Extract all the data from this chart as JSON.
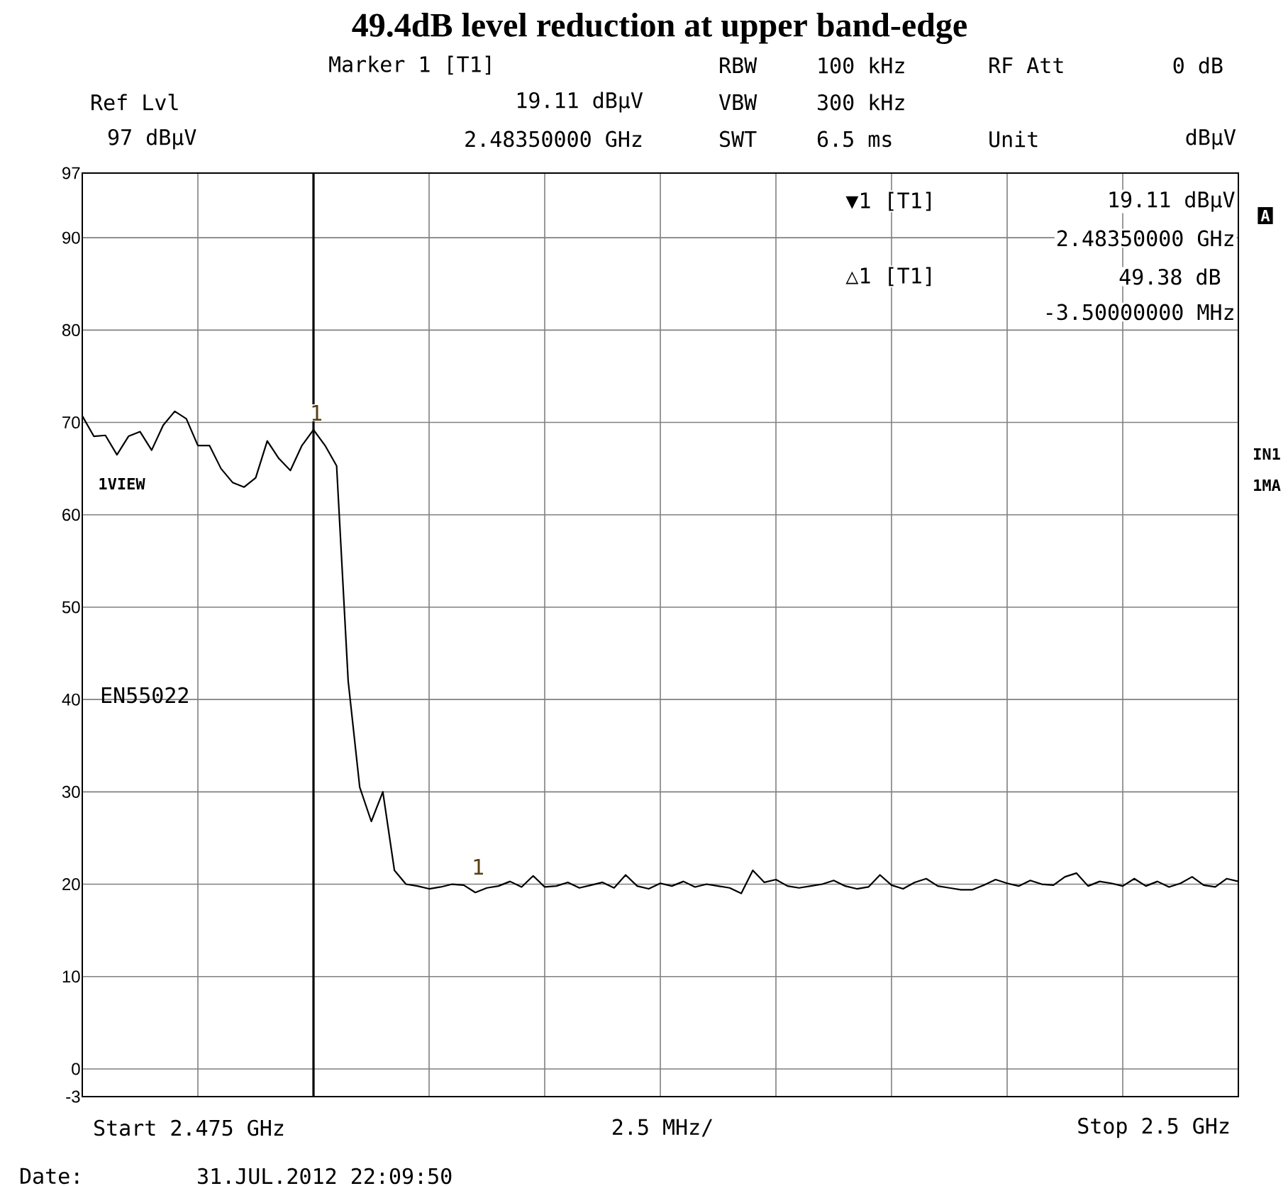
{
  "chart_data": {
    "type": "line",
    "title": "49.4dB level reduction at upper band-edge",
    "categories": [
      null,
      null,
      null,
      null,
      null,
      null,
      null,
      null,
      null,
      null,
      null,
      null,
      null,
      null,
      null,
      null,
      null,
      null,
      null,
      null,
      null,
      null,
      null,
      null,
      null,
      null,
      null,
      null,
      null,
      null,
      null,
      null,
      null,
      null,
      null,
      null,
      null,
      null,
      null,
      null,
      null,
      null,
      null,
      null,
      null,
      null,
      null,
      null,
      null,
      null,
      null,
      null,
      null,
      null,
      null,
      null,
      null,
      null,
      null,
      null,
      null,
      null,
      null,
      null,
      null,
      null,
      null,
      null,
      null,
      null,
      null,
      null,
      null,
      null,
      null,
      null,
      null,
      null,
      null,
      null,
      null,
      null,
      null,
      null,
      null,
      null,
      null,
      null,
      null,
      null,
      null,
      null,
      null,
      null,
      null,
      null,
      null,
      null,
      null,
      null,
      null
    ],
    "ylim": [
      -3,
      97
    ],
    "yticks": [
      -3,
      0,
      10,
      20,
      30,
      40,
      50,
      60,
      70,
      80,
      90,
      97
    ],
    "grid": true,
    "marker": "none",
    "line_style": "solid",
    "series": [
      {
        "color": "#000000",
        "values": [
          70.7,
          68.5,
          68.6,
          66.5,
          68.5,
          69.0,
          67.0,
          69.7,
          71.2,
          70.4,
          67.5,
          67.5,
          65.0,
          63.5,
          63.0,
          64.0,
          68.0,
          66.1,
          64.8,
          67.5,
          69.2,
          67.5,
          65.3,
          42.0,
          30.5,
          26.8,
          30.0,
          21.5,
          20.0,
          19.8,
          19.5,
          19.7,
          20.0,
          19.9,
          19.1,
          19.6,
          19.8,
          20.3,
          19.7,
          20.9,
          19.7,
          19.8,
          20.2,
          19.6,
          19.9,
          20.2,
          19.6,
          21.0,
          19.8,
          19.5,
          20.1,
          19.8,
          20.3,
          19.7,
          20.0,
          19.8,
          19.6,
          19.0,
          21.5,
          20.2,
          20.5,
          19.8,
          19.6,
          19.8,
          20.0,
          20.4,
          19.8,
          19.5,
          19.7,
          21.0,
          19.9,
          19.5,
          20.2,
          20.6,
          19.8,
          19.6,
          19.4,
          19.4,
          19.9,
          20.5,
          20.1,
          19.8,
          20.4,
          20.0,
          19.9,
          20.8,
          21.2,
          19.8,
          20.3,
          20.1,
          19.8,
          20.6,
          19.8,
          20.3,
          19.7,
          20.1,
          20.8,
          19.9,
          19.7,
          20.6,
          20.3
        ]
      }
    ],
    "annotations": [
      "Marker 1 [T1]",
      "RBW",
      "100 kHz",
      "RF Att",
      "0 dB",
      "Ref Lvl",
      "19.11 dBµV",
      "VBW",
      "300 kHz",
      "97 dBµV",
      "2.48350000 GHz",
      "SWT",
      "6.5 ms",
      "Unit",
      "dBµV",
      "▼1 [T1]",
      "19.11 dBµV",
      "2.48350000 GHz",
      "△1 [T1]",
      "49.38 dB",
      "-3.50000000 MHz",
      "A",
      "IN1",
      "1MA",
      "1VIEW",
      "EN55022",
      "Start 2.475 GHz",
      "2.5 MHz/",
      "Stop 2.5 GHz",
      "Date:",
      "31.JUL.2012 22:09:50",
      "1",
      "1"
    ]
  }
}
